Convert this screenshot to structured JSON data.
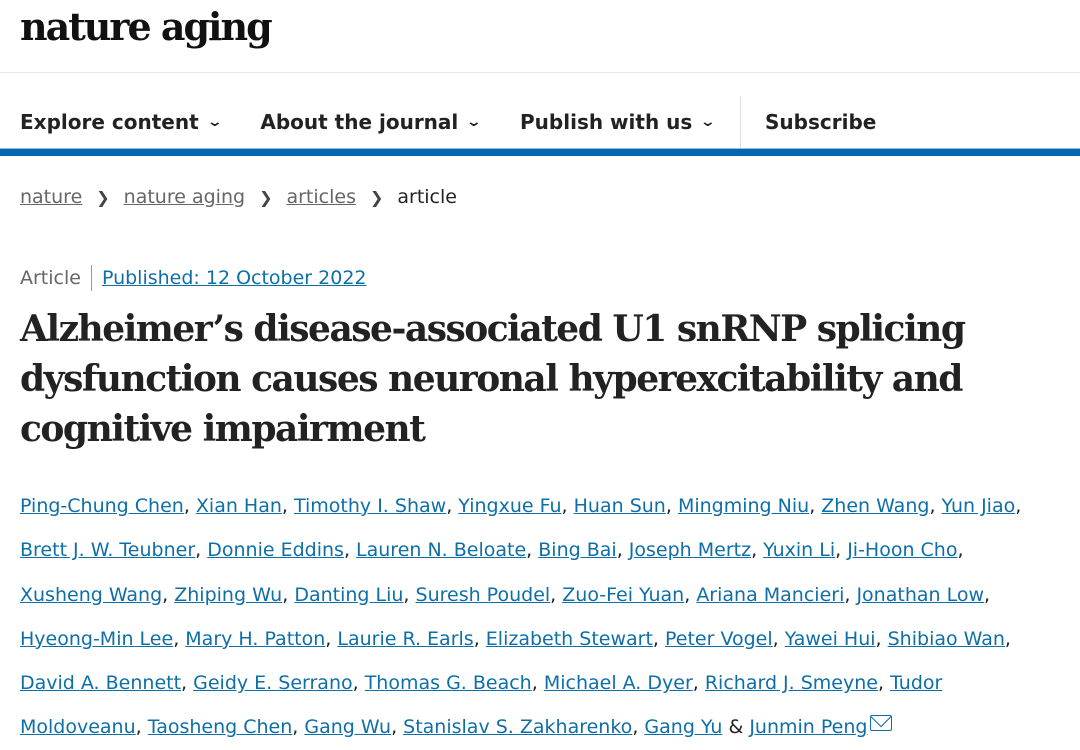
{
  "logo": "nature aging",
  "nav": {
    "items": [
      "Explore content",
      "About the journal",
      "Publish with us"
    ],
    "subscribe": "Subscribe"
  },
  "breadcrumb": [
    "nature",
    "nature aging",
    "articles",
    "article"
  ],
  "meta": {
    "type": "Article",
    "published": "Published: 12 October 2022"
  },
  "title": "Alzheimer’s disease-associated U1 snRNP splicing dysfunction causes neuronal hyperexcitability and cognitive impairment",
  "authors": [
    [
      "Ping-Chung Chen",
      "Xian Han",
      "Timothy I. Shaw",
      "Yingxue Fu",
      "Huan Sun",
      "Mingming Niu",
      "Zhen Wang",
      "Yun Jiao"
    ],
    [
      "Brett J. W. Teubner",
      "Donnie Eddins",
      "Lauren N. Beloate",
      "Bing Bai",
      "Joseph Mertz",
      "Yuxin Li",
      "Ji-Hoon Cho"
    ],
    [
      "Xusheng Wang",
      "Zhiping Wu",
      "Danting Liu",
      "Suresh Poudel",
      "Zuo-Fei Yuan",
      "Ariana Mancieri",
      "Jonathan Low"
    ],
    [
      "Hyeong-Min Lee",
      "Mary H. Patton",
      "Laurie R. Earls",
      "Elizabeth Stewart",
      "Peter Vogel",
      "Yawei Hui",
      "Shibiao Wan"
    ],
    [
      "David A. Bennett",
      "Geidy E. Serrano",
      "Thomas G. Beach",
      "Michael A. Dyer",
      "Richard J. Smeyne",
      "Tudor"
    ],
    [
      "Moldoveanu",
      "Taosheng Chen",
      "Gang Wu",
      "Stanislav S. Zakharenko",
      "Gang Yu",
      "Junmin Peng"
    ]
  ],
  "amp": "&"
}
